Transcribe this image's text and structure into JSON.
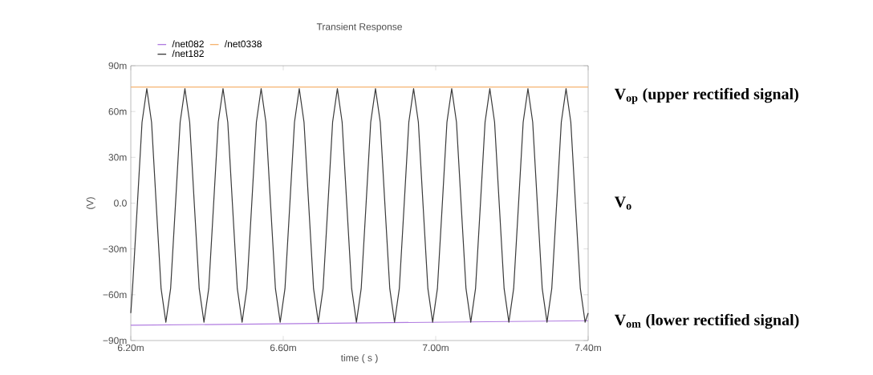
{
  "chart_data": {
    "type": "line",
    "title": "Transient Response",
    "xlabel": "time ( s )",
    "ylabel": "(V)",
    "xlim": [
      6.2,
      7.4
    ],
    "ylim": [
      -90,
      90
    ],
    "xticks": [
      {
        "value": 6.2,
        "label": "6.20m"
      },
      {
        "value": 6.6,
        "label": "6.60m"
      },
      {
        "value": 7.0,
        "label": "7.00m"
      },
      {
        "value": 7.4,
        "label": "7.40m"
      }
    ],
    "yticks": [
      {
        "value": -90,
        "label": "−90m"
      },
      {
        "value": -60,
        "label": "−60m"
      },
      {
        "value": -30,
        "label": "−30m"
      },
      {
        "value": 0,
        "label": "0.0"
      },
      {
        "value": 30,
        "label": "30m"
      },
      {
        "value": 60,
        "label": "60m"
      },
      {
        "value": 90,
        "label": "90m"
      }
    ],
    "legend": "top left",
    "series": [
      {
        "name": "/net082",
        "color": "#b07be0",
        "x": [
          6.2,
          7.4
        ],
        "values": [
          -80,
          -77
        ]
      },
      {
        "name": "/net182",
        "color": "#3a3a3a",
        "x": [
          6.2,
          6.2045,
          6.217,
          6.2295,
          6.242,
          6.2545,
          6.267,
          6.2795,
          6.292,
          6.3045,
          6.317,
          6.3295,
          6.342,
          6.3545,
          6.367,
          6.3795,
          6.392,
          6.4045,
          6.417,
          6.4295,
          6.442,
          6.4545,
          6.467,
          6.4795,
          6.492,
          6.5045,
          6.517,
          6.5295,
          6.542,
          6.5545,
          6.567,
          6.5795,
          6.592,
          6.6045,
          6.617,
          6.6295,
          6.642,
          6.6545,
          6.667,
          6.6795,
          6.692,
          6.7045,
          6.717,
          6.7295,
          6.742,
          6.7545,
          6.767,
          6.7795,
          6.792,
          6.8045,
          6.817,
          6.8295,
          6.842,
          6.8545,
          6.867,
          6.8795,
          6.892,
          6.9045,
          6.917,
          6.9295,
          6.942,
          6.9545,
          6.967,
          6.9795,
          6.992,
          7.0045,
          7.017,
          7.0295,
          7.042,
          7.0545,
          7.067,
          7.0795,
          7.092,
          7.1045,
          7.117,
          7.1295,
          7.142,
          7.1545,
          7.167,
          7.1795,
          7.192,
          7.2045,
          7.217,
          7.2295,
          7.242,
          7.2545,
          7.267,
          7.2795,
          7.292,
          7.3045,
          7.317,
          7.3295,
          7.342,
          7.3545,
          7.367,
          7.3795,
          7.392,
          7.4
        ],
        "values": [
          -72,
          -56,
          -2,
          53,
          75,
          53,
          -2,
          -56,
          -78,
          -56,
          -2,
          53,
          75,
          53,
          -2,
          -56,
          -78,
          -56,
          -2,
          53,
          75,
          53,
          -2,
          -56,
          -78,
          -56,
          -2,
          53,
          75,
          53,
          -2,
          -56,
          -78,
          -56,
          -2,
          53,
          75,
          53,
          -2,
          -56,
          -78,
          -56,
          -2,
          53,
          75,
          53,
          -2,
          -56,
          -78,
          -56,
          -2,
          53,
          75,
          53,
          -2,
          -56,
          -78,
          -56,
          -2,
          53,
          75,
          53,
          -2,
          -56,
          -78,
          -56,
          -2,
          53,
          75,
          53,
          -2,
          -56,
          -78,
          -56,
          -2,
          53,
          75,
          53,
          -2,
          -56,
          -78,
          -56,
          -2,
          53,
          75,
          53,
          -2,
          -56,
          -78,
          -56,
          -2,
          53,
          75,
          53,
          -2,
          -56,
          -78,
          -72
        ]
      },
      {
        "name": "/net0338",
        "color": "#f5b370",
        "x": [
          6.2,
          7.4
        ],
        "values": [
          76,
          76
        ]
      }
    ],
    "annotations": [
      "V$_{op}$ (upper rectified signal)",
      "V$_{o}$",
      "V$_{om}$ (lower rectified signal)"
    ]
  }
}
